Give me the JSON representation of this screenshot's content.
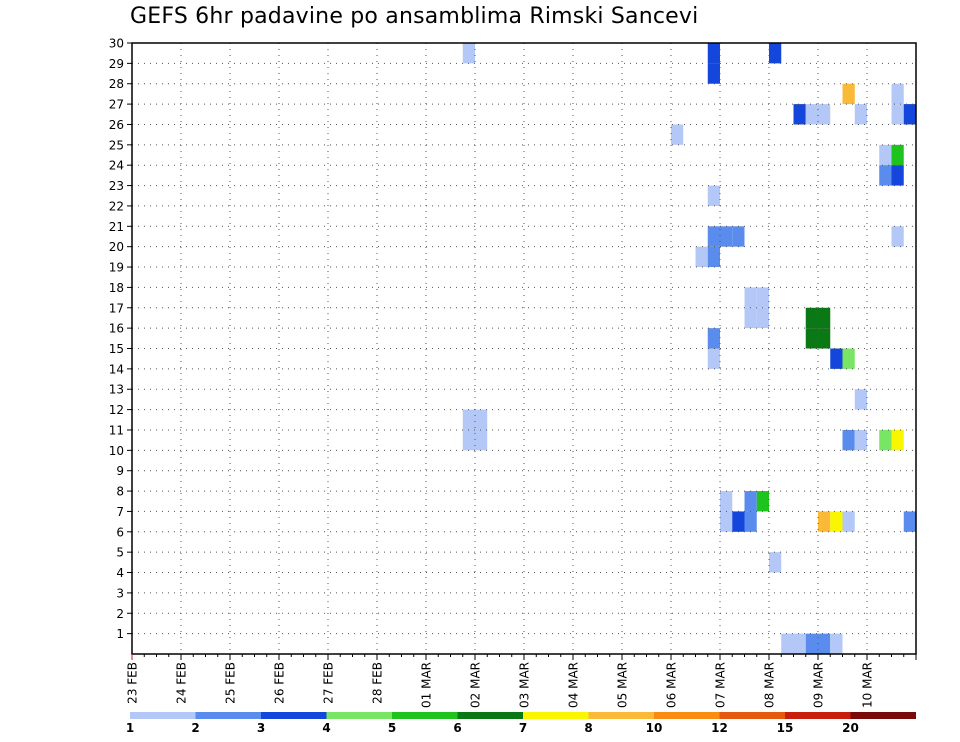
{
  "chart_data": {
    "type": "heatmap",
    "title": "GEFS 6hr padavine po ansamblima Rimski Sancevi",
    "x_labels": [
      "23 FEB",
      "24 FEB",
      "25 FEB",
      "26 FEB",
      "27 FEB",
      "28 FEB",
      "01 MAR",
      "02 MAR",
      "03 MAR",
      "04 MAR",
      "05 MAR",
      "06 MAR",
      "07 MAR",
      "08 MAR",
      "09 MAR",
      "10 MAR"
    ],
    "x_range": [
      "2020-02-23T00",
      "2020-03-10T00"
    ],
    "time_step_hours": 6,
    "y_range": [
      0,
      30
    ],
    "y_ticks": [
      1,
      2,
      3,
      4,
      5,
      6,
      7,
      8,
      9,
      10,
      11,
      12,
      13,
      14,
      15,
      16,
      17,
      18,
      19,
      20,
      21,
      22,
      23,
      24,
      25,
      26,
      27,
      28,
      29,
      30
    ],
    "grid": true,
    "colorbar": {
      "labels": [
        "1",
        "2",
        "3",
        "4",
        "5",
        "6",
        "7",
        "8",
        "10",
        "12",
        "15",
        "20"
      ],
      "colors": [
        "#b4c8f8",
        "#5a8cee",
        "#1446dc",
        "#78e664",
        "#1ec31e",
        "#0a7814",
        "#faf500",
        "#fab937",
        "#fa8c14",
        "#e65a0f",
        "#c81e0f",
        "#780a0a"
      ]
    },
    "cells": [
      {
        "t": "2020-02-29T18",
        "member": 11,
        "color": "#b4c8f8"
      },
      {
        "t": "2020-03-01T00",
        "member": 11,
        "color": "#b4c8f8"
      },
      {
        "t": "2020-02-29T18",
        "member": 12,
        "color": "#b4c8f8"
      },
      {
        "t": "2020-03-01T00",
        "member": 12,
        "color": "#b4c8f8"
      },
      {
        "t": "2020-02-29T18",
        "member": 30,
        "color": "#b4c8f8"
      },
      {
        "t": "2020-03-05T00",
        "member": 26,
        "color": "#b4c8f8"
      },
      {
        "t": "2020-03-05T12",
        "member": 20,
        "color": "#b4c8f8"
      },
      {
        "t": "2020-03-05T18",
        "member": 20,
        "color": "#5a8cee"
      },
      {
        "t": "2020-03-05T18",
        "member": 21,
        "color": "#5a8cee"
      },
      {
        "t": "2020-03-05T18",
        "member": 30,
        "color": "#1446dc"
      },
      {
        "t": "2020-03-05T18",
        "member": 29,
        "color": "#1446dc"
      },
      {
        "t": "2020-03-05T18",
        "member": 23,
        "color": "#b4c8f8"
      },
      {
        "t": "2020-03-06T00",
        "member": 21,
        "color": "#5a8cee"
      },
      {
        "t": "2020-03-06T06",
        "member": 21,
        "color": "#5a8cee"
      },
      {
        "t": "2020-03-05T18",
        "member": 16,
        "color": "#5a8cee"
      },
      {
        "t": "2020-03-05T18",
        "member": 15,
        "color": "#b4c8f8"
      },
      {
        "t": "2020-03-06T12",
        "member": 18,
        "color": "#b4c8f8"
      },
      {
        "t": "2020-03-06T18",
        "member": 18,
        "color": "#b4c8f8"
      },
      {
        "t": "2020-03-06T12",
        "member": 17,
        "color": "#b4c8f8"
      },
      {
        "t": "2020-03-06T18",
        "member": 17,
        "color": "#b4c8f8"
      },
      {
        "t": "2020-03-07T18",
        "member": 17,
        "color": "#0a7814"
      },
      {
        "t": "2020-03-08T00",
        "member": 17,
        "color": "#0a7814"
      },
      {
        "t": "2020-03-07T18",
        "member": 16,
        "color": "#0a7814"
      },
      {
        "t": "2020-03-08T00",
        "member": 16,
        "color": "#0a7814"
      },
      {
        "t": "2020-03-07T00",
        "member": 30,
        "color": "#1446dc"
      },
      {
        "t": "2020-03-07T12",
        "member": 27,
        "color": "#1446dc"
      },
      {
        "t": "2020-03-07T18",
        "member": 27,
        "color": "#b4c8f8"
      },
      {
        "t": "2020-03-08T00",
        "member": 27,
        "color": "#b4c8f8"
      },
      {
        "t": "2020-03-08T12",
        "member": 28,
        "color": "#fab937"
      },
      {
        "t": "2020-03-08T18",
        "member": 27,
        "color": "#b4c8f8"
      },
      {
        "t": "2020-03-09T12",
        "member": 28,
        "color": "#b4c8f8"
      },
      {
        "t": "2020-03-09T12",
        "member": 27,
        "color": "#b4c8f8"
      },
      {
        "t": "2020-03-09T18",
        "member": 27,
        "color": "#1446dc"
      },
      {
        "t": "2020-03-09T06",
        "member": 25,
        "color": "#b4c8f8"
      },
      {
        "t": "2020-03-09T12",
        "member": 25,
        "color": "#1ec31e"
      },
      {
        "t": "2020-03-09T06",
        "member": 24,
        "color": "#5a8cee"
      },
      {
        "t": "2020-03-09T12",
        "member": 24,
        "color": "#1446dc"
      },
      {
        "t": "2020-03-09T12",
        "member": 21,
        "color": "#b4c8f8"
      },
      {
        "t": "2020-03-08T06",
        "member": 15,
        "color": "#1446dc"
      },
      {
        "t": "2020-03-08T12",
        "member": 15,
        "color": "#78e664"
      },
      {
        "t": "2020-03-08T18",
        "member": 13,
        "color": "#b4c8f8"
      },
      {
        "t": "2020-03-08T12",
        "member": 11,
        "color": "#5a8cee"
      },
      {
        "t": "2020-03-08T18",
        "member": 11,
        "color": "#b4c8f8"
      },
      {
        "t": "2020-03-09T06",
        "member": 11,
        "color": "#78e664"
      },
      {
        "t": "2020-03-09T12",
        "member": 11,
        "color": "#faf500"
      },
      {
        "t": "2020-03-06T00",
        "member": 8,
        "color": "#b4c8f8"
      },
      {
        "t": "2020-03-06T00",
        "member": 7,
        "color": "#b4c8f8"
      },
      {
        "t": "2020-03-06T06",
        "member": 7,
        "color": "#1446dc"
      },
      {
        "t": "2020-03-06T12",
        "member": 8,
        "color": "#5a8cee"
      },
      {
        "t": "2020-03-06T12",
        "member": 7,
        "color": "#5a8cee"
      },
      {
        "t": "2020-03-06T18",
        "member": 8,
        "color": "#1ec31e"
      },
      {
        "t": "2020-03-07T00",
        "member": 5,
        "color": "#b4c8f8"
      },
      {
        "t": "2020-03-08T00",
        "member": 7,
        "color": "#fab937"
      },
      {
        "t": "2020-03-08T06",
        "member": 7,
        "color": "#faf500"
      },
      {
        "t": "2020-03-08T12",
        "member": 7,
        "color": "#b4c8f8"
      },
      {
        "t": "2020-03-09T18",
        "member": 7,
        "color": "#5a8cee"
      },
      {
        "t": "2020-03-07T06",
        "member": 1,
        "color": "#b4c8f8"
      },
      {
        "t": "2020-03-07T12",
        "member": 1,
        "color": "#b4c8f8"
      },
      {
        "t": "2020-03-07T18",
        "member": 1,
        "color": "#5a8cee"
      },
      {
        "t": "2020-03-08T00",
        "member": 1,
        "color": "#5a8cee"
      },
      {
        "t": "2020-03-08T06",
        "member": 1,
        "color": "#b4c8f8"
      }
    ]
  }
}
